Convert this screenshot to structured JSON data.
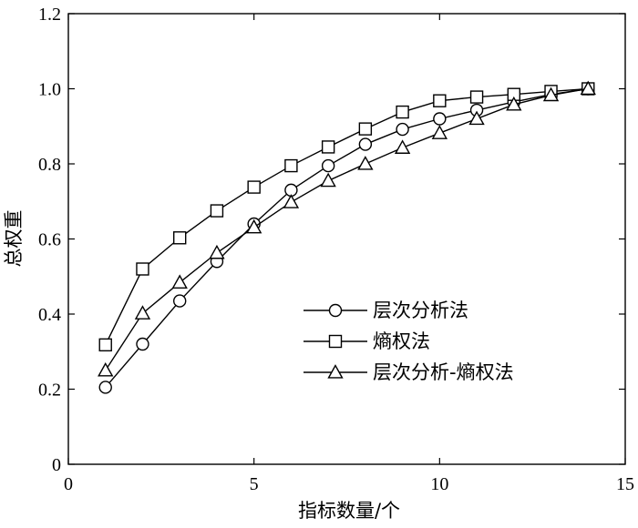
{
  "chart_data": {
    "type": "line",
    "title": "",
    "xlabel": "指标数量/个",
    "ylabel": "总权重",
    "xlim": [
      0,
      15
    ],
    "ylim": [
      0,
      1.2
    ],
    "x_ticks": [
      "0",
      "5",
      "10",
      "15"
    ],
    "y_ticks": [
      "0",
      "0.2",
      "0.4",
      "0.6",
      "0.8",
      "1.0",
      "1.2"
    ],
    "x_tick_values": [
      0,
      5,
      10,
      15
    ],
    "y_tick_values": [
      0,
      0.2,
      0.4,
      0.6,
      0.8,
      1.0,
      1.2
    ],
    "grid": false,
    "legend_position": "center-right",
    "x": [
      1,
      2,
      3,
      4,
      5,
      6,
      7,
      8,
      9,
      10,
      11,
      12,
      13,
      14
    ],
    "series": [
      {
        "name": "层次分析法",
        "marker": "circle",
        "values": [
          0.205,
          0.32,
          0.435,
          0.54,
          0.64,
          0.73,
          0.795,
          0.852,
          0.892,
          0.92,
          0.943,
          0.965,
          0.985,
          1.0
        ]
      },
      {
        "name": "熵权法",
        "marker": "square",
        "values": [
          0.318,
          0.52,
          0.603,
          0.675,
          0.738,
          0.795,
          0.845,
          0.893,
          0.938,
          0.968,
          0.978,
          0.985,
          0.993,
          1.0
        ]
      },
      {
        "name": "层次分析-熵权法",
        "marker": "triangle",
        "values": [
          0.25,
          0.402,
          0.484,
          0.563,
          0.631,
          0.698,
          0.755,
          0.8,
          0.843,
          0.882,
          0.92,
          0.958,
          0.983,
          1.0
        ]
      }
    ]
  }
}
